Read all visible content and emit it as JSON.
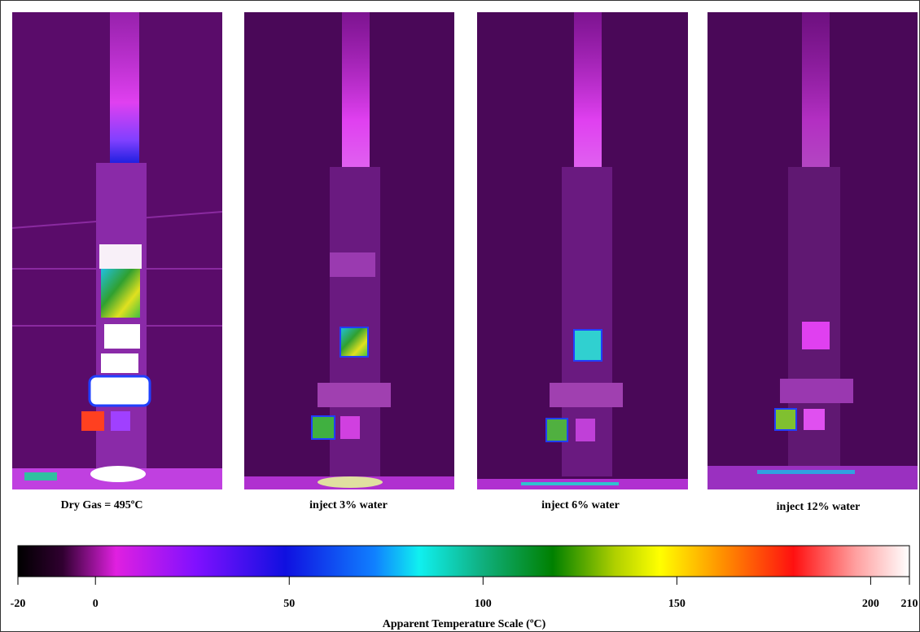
{
  "panels": [
    {
      "caption": "Dry Gas = 495ºC"
    },
    {
      "caption": "inject 3% water"
    },
    {
      "caption": "inject 6% water"
    },
    {
      "caption": "inject 12% water"
    }
  ],
  "colorbar": {
    "label": "Apparent Temperature Scale (ºC)",
    "lim": [
      -20,
      210
    ],
    "ticks": [
      -20,
      0,
      50,
      100,
      150,
      200,
      210
    ]
  }
}
